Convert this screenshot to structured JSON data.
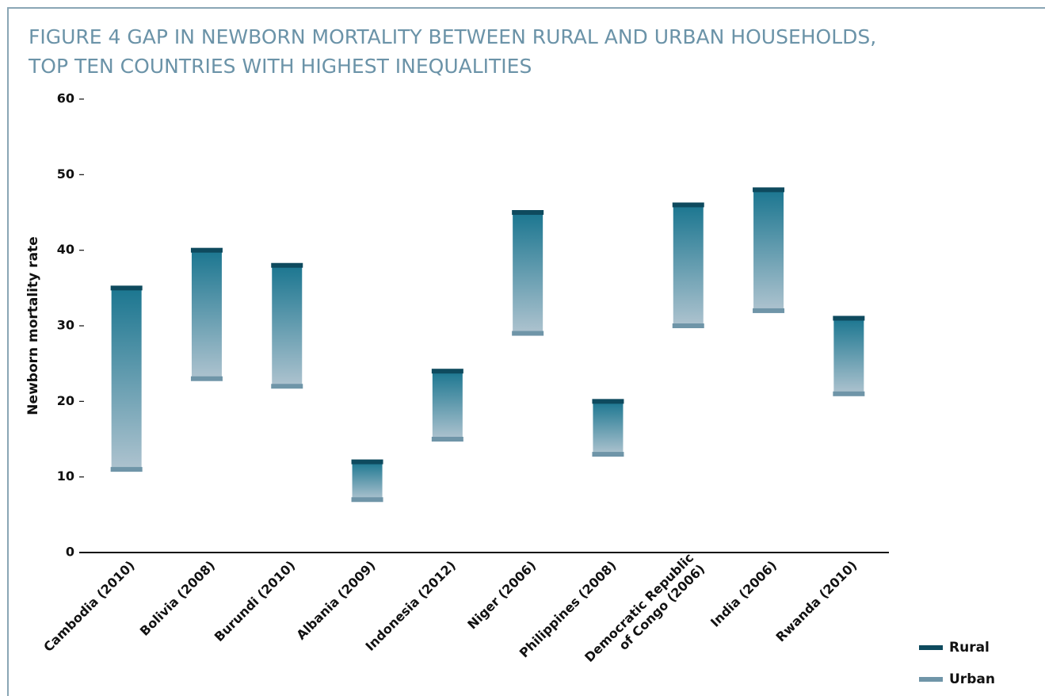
{
  "chart_data": {
    "type": "range_bar",
    "title": "FIGURE 4  GAP IN NEWBORN MORTALITY BETWEEN RURAL AND URBAN HOUSEHOLDS,\nTOP TEN COUNTRIES WITH HIGHEST INEQUALITIES",
    "y_label": "Newborn mortality rate",
    "categories": [
      "Cambodia (2010)",
      "Bolivia (2008)",
      "Burundi (2010)",
      "Albania (2009)",
      "Indonesia (2012)",
      "Niger (2006)",
      "Philippines (2008)",
      "Democratic Republic\nof Congo (2006)",
      "India (2006)",
      "Rwanda (2010)"
    ],
    "series": [
      {
        "name": "Rural",
        "color": "#0e4a5e",
        "values": [
          35,
          40,
          38,
          12,
          24,
          45,
          20,
          46,
          48,
          31
        ]
      },
      {
        "name": "Urban",
        "color": "#6f95a8",
        "values": [
          11,
          23,
          22,
          7,
          15,
          29,
          13,
          30,
          32,
          21
        ]
      }
    ],
    "ylim": [
      0,
      60
    ],
    "yticks": [
      0,
      10,
      20,
      30,
      40,
      50,
      60
    ],
    "legend": "bottom-right"
  }
}
